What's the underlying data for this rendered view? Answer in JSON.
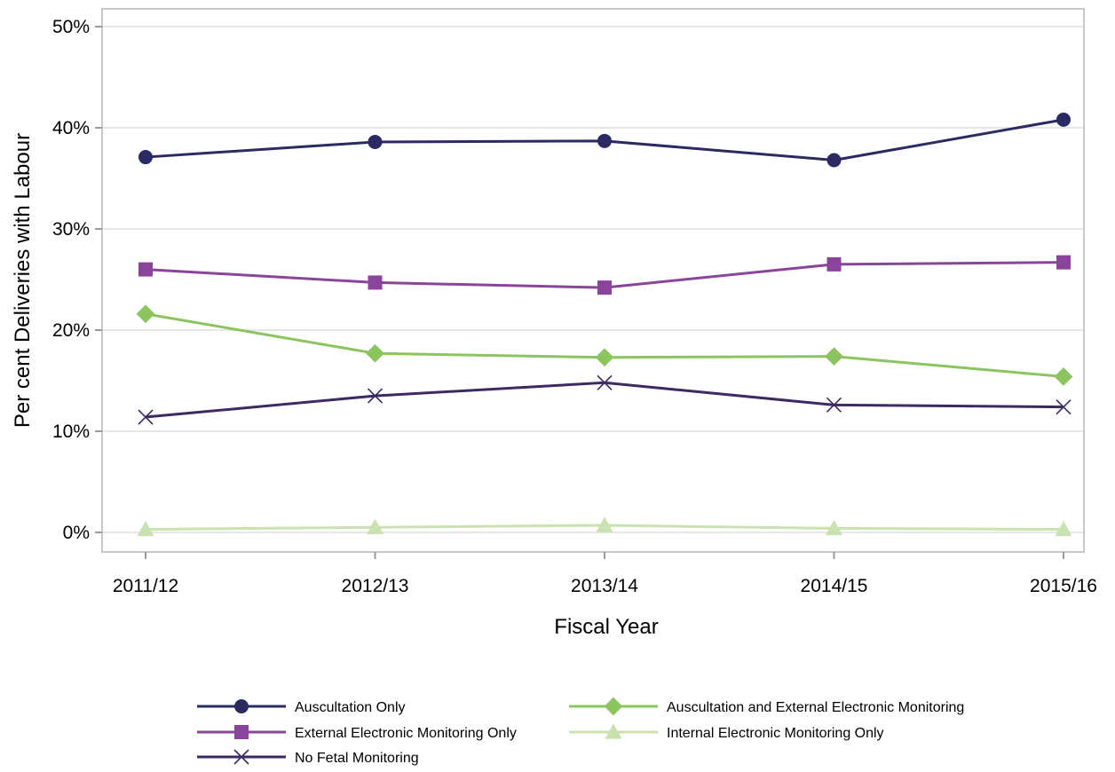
{
  "chart_data": {
    "type": "line",
    "title": "",
    "xlabel": "Fiscal Year",
    "ylabel": "Per cent Deliveries with Labour",
    "categories": [
      "2011/12",
      "2012/13",
      "2013/14",
      "2014/15",
      "2015/16"
    ],
    "ylim": [
      0,
      50
    ],
    "yticks": [
      0,
      10,
      20,
      30,
      40,
      50
    ],
    "ytick_labels": [
      "0%",
      "10%",
      "20%",
      "30%",
      "40%",
      "50%"
    ],
    "grid": "horizontal",
    "legend_position": "bottom",
    "series": [
      {
        "name": "Auscultation Only",
        "values": [
          37.1,
          38.6,
          38.7,
          36.8,
          40.8
        ],
        "color": "#2b2a63",
        "marker": "circle"
      },
      {
        "name": "Auscultation and External Electronic Monitoring",
        "values": [
          21.6,
          17.7,
          17.3,
          17.4,
          15.4
        ],
        "color": "#8cc55f",
        "marker": "diamond"
      },
      {
        "name": "External Electronic Monitoring Only",
        "values": [
          26.0,
          24.7,
          24.2,
          26.5,
          26.7
        ],
        "color": "#8a459a",
        "marker": "square"
      },
      {
        "name": "Internal Electronic Monitoring Only",
        "values": [
          0.3,
          0.5,
          0.7,
          0.4,
          0.3
        ],
        "color": "#c9e2b0",
        "marker": "triangle"
      },
      {
        "name": "No Fetal Monitoring",
        "values": [
          11.4,
          13.5,
          14.8,
          12.6,
          12.4
        ],
        "color": "#3c2a63",
        "marker": "x"
      }
    ]
  }
}
